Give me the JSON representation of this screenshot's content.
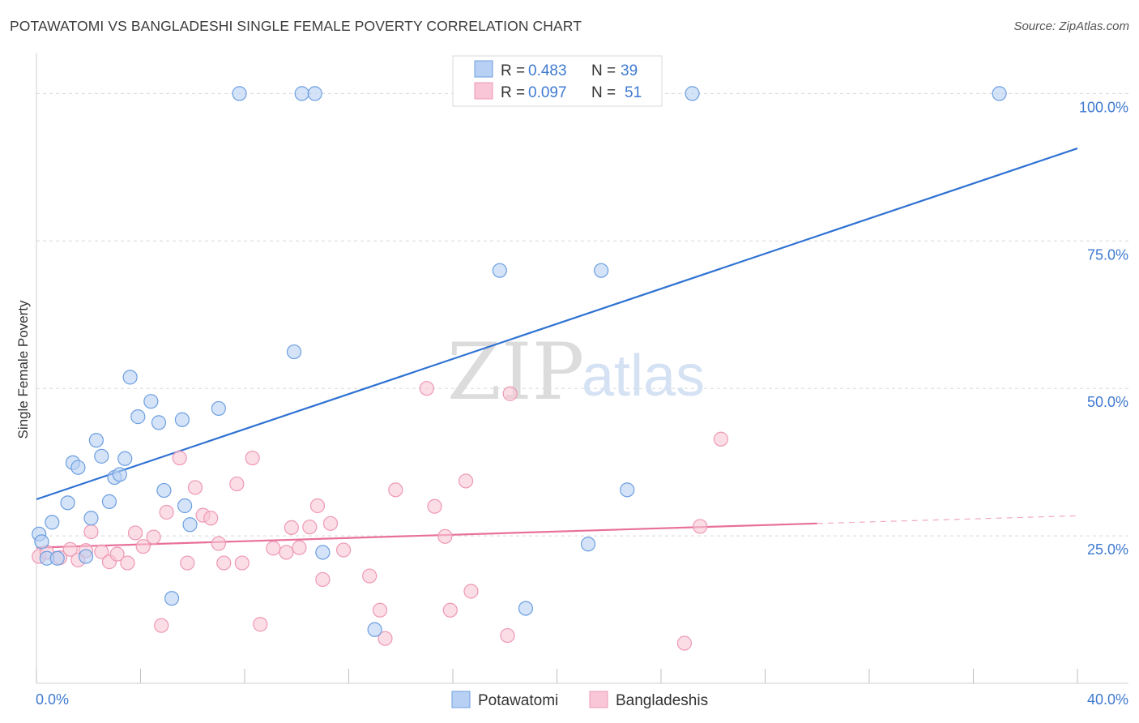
{
  "header": {
    "title": "POTAWATOMI VS BANGLADESHI SINGLE FEMALE POVERTY CORRELATION CHART",
    "source": "Source: ZipAtlas.com"
  },
  "watermark": {
    "zip": "ZIP",
    "atlas": "atlas"
  },
  "colors": {
    "blue_fill": "#b8d0f3",
    "blue_stroke": "#6c9fe0",
    "blue_line": "#2f72d2",
    "pink_fill": "#f8c6d6",
    "pink_stroke": "#ee98b4",
    "pink_line": "#e8709a",
    "label_blue": "#3f7ad0",
    "grid": "#d8d8d8"
  },
  "chart_data": {
    "type": "scatter",
    "title": "POTAWATOMI VS BANGLADESHI SINGLE FEMALE POVERTY CORRELATION CHART",
    "xlabel": "",
    "ylabel": "Single Female Poverty",
    "xlim": [
      0,
      40
    ],
    "ylim": [
      0,
      105
    ],
    "x_tick_labels": [
      {
        "value": 0,
        "label": "0.0%"
      },
      {
        "value": 40,
        "label": "40.0%"
      }
    ],
    "y_tick_labels": [
      {
        "value": 25,
        "label": "25.0%"
      },
      {
        "value": 50,
        "label": "50.0%"
      },
      {
        "value": 75,
        "label": "75.0%"
      },
      {
        "value": 100,
        "label": "100.0%"
      }
    ],
    "legend": {
      "position": "top-center",
      "entries": [
        {
          "r_label": "R =",
          "r_value": "0.483",
          "n_label": "N =",
          "n_value": "39"
        },
        {
          "r_label": "R =",
          "r_value": "0.097",
          "n_label": "N =",
          "n_value": "51"
        }
      ]
    },
    "bottom_legend": [
      "Potawatomi",
      "Bangladeshis"
    ],
    "series": [
      {
        "name": "Potawatomi",
        "color": "blue",
        "points": [
          [
            0.1,
            25.3
          ],
          [
            0.2,
            24.0
          ],
          [
            0.4,
            21.2
          ],
          [
            0.6,
            27.3
          ],
          [
            0.8,
            21.2
          ],
          [
            1.2,
            30.6
          ],
          [
            1.4,
            37.4
          ],
          [
            1.6,
            36.6
          ],
          [
            1.9,
            21.5
          ],
          [
            2.1,
            28.0
          ],
          [
            2.3,
            41.2
          ],
          [
            2.5,
            38.5
          ],
          [
            2.8,
            30.8
          ],
          [
            3.0,
            34.9
          ],
          [
            3.2,
            35.4
          ],
          [
            3.4,
            38.1
          ],
          [
            3.6,
            51.9
          ],
          [
            3.9,
            45.2
          ],
          [
            4.4,
            47.8
          ],
          [
            4.7,
            44.2
          ],
          [
            4.9,
            32.7
          ],
          [
            5.2,
            14.4
          ],
          [
            5.6,
            44.7
          ],
          [
            5.7,
            30.1
          ],
          [
            5.9,
            26.9
          ],
          [
            7.0,
            46.6
          ],
          [
            7.8,
            100
          ],
          [
            9.9,
            56.2
          ],
          [
            10.2,
            100
          ],
          [
            10.7,
            100
          ],
          [
            11.0,
            22.2
          ],
          [
            13.0,
            9.1
          ],
          [
            17.8,
            70.0
          ],
          [
            18.8,
            12.7
          ],
          [
            21.2,
            23.6
          ],
          [
            21.7,
            70.0
          ],
          [
            22.7,
            32.8
          ],
          [
            25.2,
            100
          ],
          [
            37.0,
            100
          ]
        ],
        "trend": {
          "x0": 0,
          "y0": 31.2,
          "x1": 40,
          "y1": 90.7
        }
      },
      {
        "name": "Bangladeshis",
        "color": "pink",
        "points": [
          [
            0.1,
            21.5
          ],
          [
            0.4,
            22.2
          ],
          [
            0.9,
            21.3
          ],
          [
            1.3,
            22.7
          ],
          [
            1.6,
            20.9
          ],
          [
            1.9,
            22.5
          ],
          [
            2.1,
            25.7
          ],
          [
            2.5,
            22.3
          ],
          [
            2.8,
            20.6
          ],
          [
            3.1,
            21.9
          ],
          [
            3.5,
            20.4
          ],
          [
            3.8,
            25.5
          ],
          [
            4.1,
            23.2
          ],
          [
            4.5,
            24.8
          ],
          [
            4.8,
            9.8
          ],
          [
            5.0,
            29.0
          ],
          [
            5.5,
            38.2
          ],
          [
            5.8,
            20.4
          ],
          [
            6.1,
            33.2
          ],
          [
            6.4,
            28.5
          ],
          [
            6.7,
            28.0
          ],
          [
            7.0,
            23.7
          ],
          [
            7.2,
            20.4
          ],
          [
            7.7,
            33.8
          ],
          [
            7.9,
            20.4
          ],
          [
            8.3,
            38.2
          ],
          [
            8.6,
            10.0
          ],
          [
            9.1,
            22.9
          ],
          [
            9.6,
            22.2
          ],
          [
            9.8,
            26.4
          ],
          [
            10.1,
            23.0
          ],
          [
            10.5,
            26.5
          ],
          [
            10.8,
            30.1
          ],
          [
            11.0,
            17.6
          ],
          [
            11.3,
            27.1
          ],
          [
            11.8,
            22.6
          ],
          [
            12.8,
            18.2
          ],
          [
            13.2,
            12.4
          ],
          [
            13.4,
            7.6
          ],
          [
            13.8,
            32.8
          ],
          [
            15.0,
            50.0
          ],
          [
            15.3,
            30.0
          ],
          [
            15.7,
            24.9
          ],
          [
            15.9,
            12.4
          ],
          [
            16.5,
            34.3
          ],
          [
            16.7,
            15.6
          ],
          [
            18.1,
            8.1
          ],
          [
            18.2,
            49.1
          ],
          [
            24.9,
            6.8
          ],
          [
            25.5,
            26.6
          ],
          [
            26.3,
            41.4
          ]
        ],
        "trend": {
          "x0": 0,
          "y0": 23.0,
          "x1": 30,
          "y1": 27.1
        },
        "trend_dashed": {
          "x0": 30,
          "y0": 27.1,
          "x1": 40,
          "y1": 28.4
        }
      }
    ]
  }
}
